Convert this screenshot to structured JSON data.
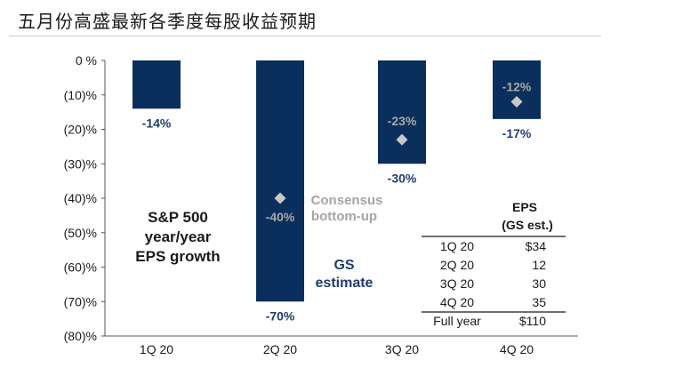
{
  "header": {
    "title": "五月份高盛最新各季度每股收益预期"
  },
  "chart_data": {
    "type": "bar",
    "categories": [
      "1Q 20",
      "2Q 20",
      "3Q 20",
      "4Q 20"
    ],
    "series": [
      {
        "name": "GS estimate",
        "values": [
          -14,
          -70,
          -30,
          -17
        ],
        "labels": [
          "-14%",
          "-70%",
          "-30%",
          "-17%"
        ],
        "color": "#0b2f5c"
      },
      {
        "name": "Consensus bottom-up",
        "values": [
          null,
          -40,
          -23,
          -12
        ],
        "labels": [
          "",
          "-40%",
          "-23%",
          "-12%"
        ],
        "color": "#c8c8c8"
      }
    ],
    "yticks": [
      "0 %",
      "(10)%",
      "(20)%",
      "(30)%",
      "(40)%",
      "(50)%",
      "(60)%",
      "(70)%",
      "(80)%"
    ],
    "ylim": [
      -80,
      0
    ],
    "grid": false,
    "annotations": {
      "main": [
        "S&P 500",
        "year/year",
        "EPS growth"
      ],
      "gs": [
        "GS",
        "estimate"
      ],
      "consensus": [
        "Consensus",
        "bottom-up"
      ]
    },
    "table": {
      "header": [
        "EPS",
        "(GS est.)"
      ],
      "rows": [
        {
          "quarter": "1Q 20",
          "value": "$34"
        },
        {
          "quarter": "2Q 20",
          "value": "12"
        },
        {
          "quarter": "3Q 20",
          "value": "30"
        },
        {
          "quarter": "4Q 20",
          "value": "35"
        }
      ],
      "total": {
        "quarter": "Full year",
        "value": "$110"
      }
    }
  }
}
